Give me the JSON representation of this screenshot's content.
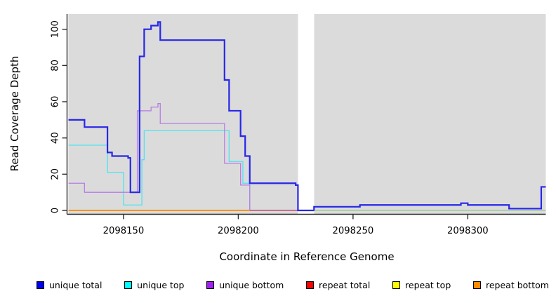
{
  "chart_data": {
    "type": "line",
    "subtype": "step",
    "title": "",
    "xlabel": "Coordinate in Reference Genome",
    "ylabel": "Read Coverage Depth",
    "xlim": [
      2098126,
      2098334
    ],
    "ylim": [
      0,
      104
    ],
    "x_ticks": [
      2098150,
      2098200,
      2098250,
      2098300
    ],
    "y_ticks": [
      0,
      20,
      40,
      60,
      80,
      100
    ],
    "grid": false,
    "legend_position": "bottom",
    "plot_bg_color": "#dbdbdb",
    "axis_color": "#2b2b2b",
    "gap_region": {
      "from": 2098226,
      "to": 2098233,
      "color": "#ffffff"
    },
    "series": [
      {
        "id": "unique-top",
        "label": "unique top",
        "legend_color": "#00ffff",
        "line_color": "#4fe2ee",
        "line_width": 1.3,
        "points": [
          [
            2098126,
            36
          ],
          [
            2098143,
            21
          ],
          [
            2098150,
            3
          ],
          [
            2098158,
            28
          ],
          [
            2098159,
            44
          ],
          [
            2098196,
            27
          ],
          [
            2098202,
            15
          ],
          [
            2098205,
            0
          ],
          [
            2098226,
            0
          ]
        ]
      },
      {
        "id": "unique-bottom",
        "label": "unique bottom",
        "legend_color": "#a020f0",
        "line_color": "#b77de4",
        "line_width": 1.3,
        "points": [
          [
            2098126,
            15
          ],
          [
            2098133,
            10
          ],
          [
            2098156,
            55
          ],
          [
            2098162,
            57
          ],
          [
            2098165,
            59
          ],
          [
            2098166,
            48
          ],
          [
            2098194,
            26
          ],
          [
            2098201,
            14
          ],
          [
            2098205,
            0
          ],
          [
            2098226,
            0
          ]
        ]
      },
      {
        "id": "repeat-total",
        "label": "repeat total",
        "legend_color": "#ff0000",
        "line_color": "#d23c5c",
        "line_width": 1.3,
        "points": [
          [
            2098126,
            0
          ],
          [
            2098226,
            0
          ]
        ]
      },
      {
        "id": "repeat-top",
        "label": "repeat top",
        "legend_color": "#ffff00",
        "line_color": "#ffff00",
        "line_width": 1.3,
        "points": [
          [
            2098126,
            0
          ],
          [
            2098205,
            0
          ]
        ]
      },
      {
        "id": "repeat-bottom",
        "label": "repeat bottom",
        "legend_color": "#ff8c00",
        "line_color": "#ff8c00",
        "line_width": 1.8,
        "points": [
          [
            2098126,
            0
          ],
          [
            2098205,
            0
          ]
        ]
      },
      {
        "id": "unique-total",
        "label": "unique total",
        "legend_color": "#0000ee",
        "line_color": "#2727e8",
        "line_width": 2.2,
        "points": [
          [
            2098126,
            50
          ],
          [
            2098133,
            46
          ],
          [
            2098143,
            32
          ],
          [
            2098145,
            30
          ],
          [
            2098152,
            29
          ],
          [
            2098153,
            10
          ],
          [
            2098157,
            85
          ],
          [
            2098159,
            100
          ],
          [
            2098162,
            102
          ],
          [
            2098165,
            104
          ],
          [
            2098166,
            94
          ],
          [
            2098194,
            72
          ],
          [
            2098196,
            55
          ],
          [
            2098201,
            41
          ],
          [
            2098203,
            30
          ],
          [
            2098205,
            15
          ],
          [
            2098225,
            14
          ],
          [
            2098226,
            0
          ],
          [
            2098233,
            2
          ],
          [
            2098253,
            3
          ],
          [
            2098297,
            4
          ],
          [
            2098300,
            3
          ],
          [
            2098318,
            1
          ],
          [
            2098332,
            13
          ],
          [
            2098334,
            13
          ]
        ]
      },
      {
        "id": "baseline-overlap",
        "label": "",
        "in_legend": false,
        "legend_color": "#8fc98f",
        "line_color": "#8fc98f",
        "line_width": 1.3,
        "points": [
          [
            2098233,
            0
          ],
          [
            2098334,
            0
          ]
        ]
      }
    ],
    "legend_order": [
      "unique-total",
      "unique-top",
      "unique-bottom",
      "repeat-total",
      "repeat-top",
      "repeat-bottom"
    ]
  }
}
